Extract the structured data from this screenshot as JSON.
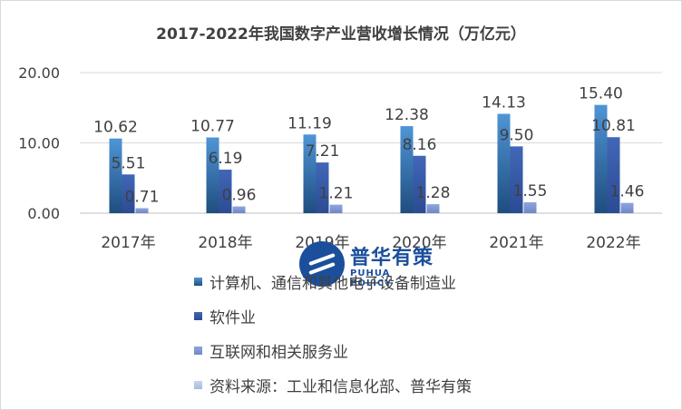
{
  "chart_data": {
    "type": "bar",
    "title": "2017-2022年我国数字产业营收增长情况（万亿元）",
    "categories": [
      "2017年",
      "2018年",
      "2019年",
      "2020年",
      "2021年",
      "2022年"
    ],
    "y_ticks": [
      "0.00",
      "10.00",
      "20.00"
    ],
    "ylim": [
      0,
      20
    ],
    "grid": true,
    "legend_position": "bottom",
    "series": [
      {
        "name": "计算机、通信和其他电子设备制造业",
        "values": [
          10.62,
          10.77,
          11.19,
          12.38,
          14.13,
          15.4
        ],
        "labels": [
          "10.62",
          "10.77",
          "11.19",
          "12.38",
          "14.13",
          "15.40"
        ],
        "color": "#3a7fc4"
      },
      {
        "name": "软件业",
        "values": [
          5.51,
          6.19,
          7.21,
          8.16,
          9.5,
          10.81
        ],
        "labels": [
          "5.51",
          "6.19",
          "7.21",
          "8.16",
          "9.50",
          "10.81"
        ],
        "color": "#3b62b5"
      },
      {
        "name": "互联网和相关服务业",
        "values": [
          0.71,
          0.96,
          1.21,
          1.28,
          1.55,
          1.46
        ],
        "labels": [
          "0.71",
          "0.96",
          "1.21",
          "1.28",
          "1.55",
          "1.46"
        ],
        "color": "#7f97d4"
      }
    ],
    "legend_extra": {
      "name": "资料来源：工业和信息化部、普华有策",
      "color": "#b9c6e6"
    }
  },
  "logo": {
    "cn": "普华有策",
    "en": "PUHUA POLICY"
  }
}
